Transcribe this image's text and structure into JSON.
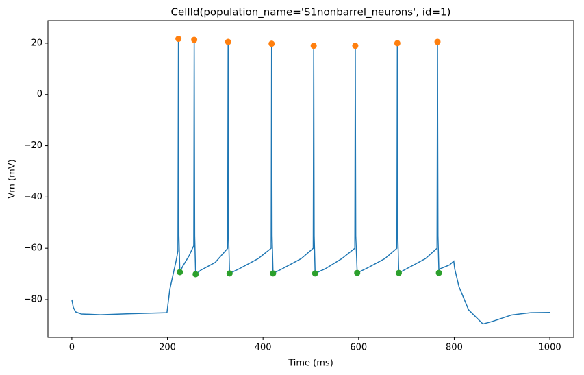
{
  "chart_data": {
    "type": "line",
    "title": "CellId(population_name='S1nonbarrel_neurons', id=1)",
    "xlabel": "Time (ms)",
    "ylabel": "Vm (mV)",
    "xlim": [
      -50,
      1050
    ],
    "ylim": [
      -94.7,
      28.8
    ],
    "xticks": [
      0,
      200,
      400,
      600,
      800,
      1000
    ],
    "yticks": [
      {
        "value": -80,
        "label": "−80"
      },
      {
        "value": -60,
        "label": "−60"
      },
      {
        "value": -40,
        "label": "−40"
      },
      {
        "value": -20,
        "label": "−20"
      },
      0,
      20
    ],
    "grid": false,
    "series": [
      {
        "type": "line",
        "color": "#1f77b4",
        "x": [
          0,
          3,
          8,
          20,
          60,
          120,
          199,
          201,
          205,
          212,
          218,
          222,
          223,
          224,
          226,
          232,
          245,
          255,
          256,
          257,
          259,
          270,
          300,
          326,
          327,
          328,
          330,
          350,
          390,
          417,
          418,
          419,
          421,
          440,
          480,
          505,
          506,
          507,
          509,
          530,
          565,
          592,
          593,
          594,
          597,
          620,
          655,
          680,
          681,
          682,
          684,
          700,
          740,
          764,
          765,
          766,
          768,
          770,
          790,
          799,
          801,
          810,
          830,
          860,
          880,
          920,
          960,
          1000
        ],
        "values": [
          -80,
          -83,
          -84.8,
          -85.6,
          -85.9,
          -85.5,
          -85.1,
          -82,
          -76,
          -70,
          -65,
          -61,
          21.7,
          -55,
          -69.3,
          -67,
          -63,
          -59,
          21.3,
          -55,
          -70.1,
          -68.5,
          -65.5,
          -60,
          20.5,
          -55,
          -69.8,
          -68,
          -64,
          -60,
          19.8,
          -55,
          -69.8,
          -68,
          -64,
          -60,
          19,
          -55,
          -69.8,
          -68,
          -64,
          -60,
          19,
          -55,
          -69.6,
          -67.5,
          -64,
          -60,
          20,
          -55,
          -69.6,
          -68,
          -64,
          -60,
          20.5,
          -55,
          -69.6,
          -68,
          -66.5,
          -65,
          -68,
          -75,
          -84,
          -89.5,
          -88.5,
          -86,
          -85.1,
          -85
        ]
      },
      {
        "type": "scatter",
        "color": "#ff7f0e",
        "x": [
          223,
          256,
          327,
          418,
          506,
          593,
          681,
          765
        ],
        "values": [
          21.7,
          21.3,
          20.5,
          19.8,
          19,
          19,
          20,
          20.5
        ]
      },
      {
        "type": "scatter",
        "color": "#2ca02c",
        "x": [
          226,
          259,
          330,
          421,
          509,
          597,
          684,
          768
        ],
        "values": [
          -69.3,
          -70.1,
          -69.8,
          -69.8,
          -69.8,
          -69.6,
          -69.6,
          -69.6
        ]
      }
    ]
  }
}
